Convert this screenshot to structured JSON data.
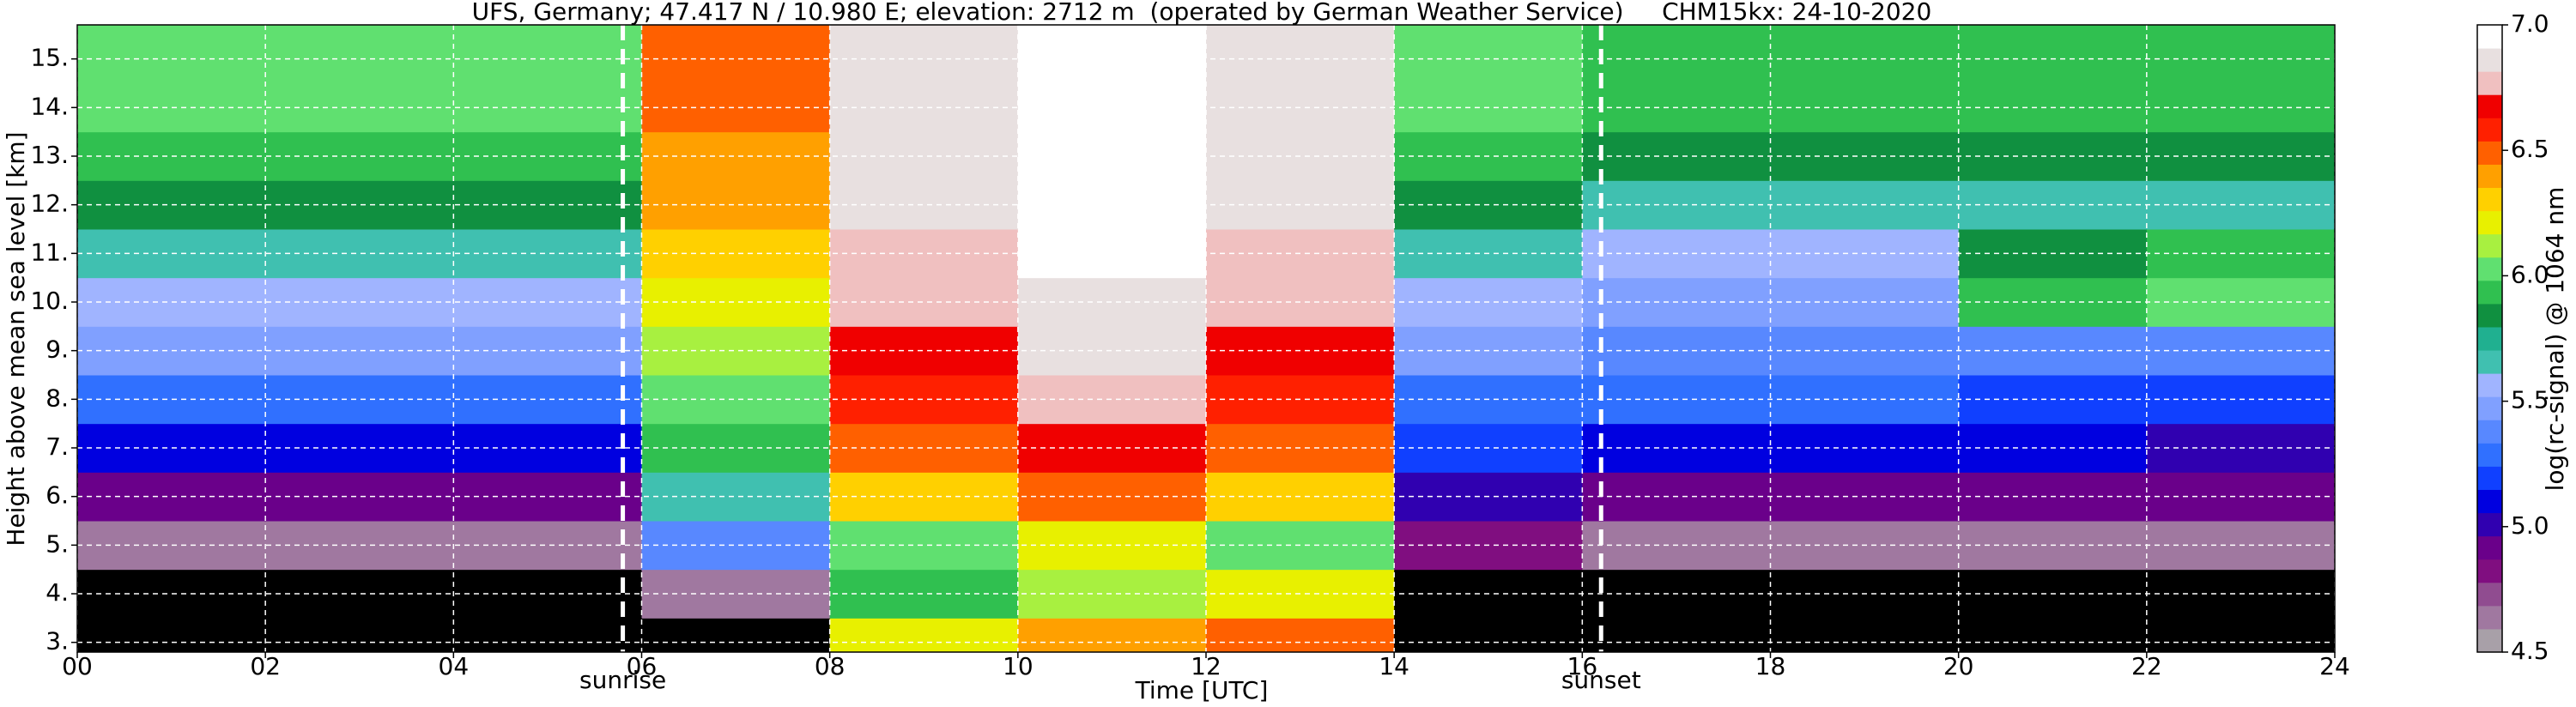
{
  "chart_data": {
    "type": "heatmap",
    "title": "UFS, Germany; 47.417 N / 10.980 E; elevation: 2712 m  (operated by German Weather Service)     CHM15kx: 24-10-2020",
    "xlabel": "Time [UTC]",
    "ylabel": "Height above mean sea level [km]",
    "xlim": [
      0,
      24
    ],
    "ylim": [
      2.8,
      15.7
    ],
    "xticks": [
      {
        "value": 0,
        "label": "00"
      },
      {
        "value": 2,
        "label": "02"
      },
      {
        "value": 4,
        "label": "04"
      },
      {
        "value": 6,
        "label": "06"
      },
      {
        "value": 8,
        "label": "08"
      },
      {
        "value": 10,
        "label": "10"
      },
      {
        "value": 12,
        "label": "12"
      },
      {
        "value": 14,
        "label": "14"
      },
      16,
      18,
      20,
      22,
      24
    ],
    "yticks": [
      {
        "value": 3,
        "label": "3."
      },
      {
        "value": 4,
        "label": "4."
      },
      {
        "value": 5,
        "label": "5."
      },
      {
        "value": 6,
        "label": "6."
      },
      {
        "value": 7,
        "label": "7."
      },
      {
        "value": 8,
        "label": "8."
      },
      {
        "value": 9,
        "label": "9."
      },
      {
        "value": 10,
        "label": "10."
      },
      {
        "value": 11,
        "label": "11."
      },
      {
        "value": 12,
        "label": "12."
      },
      {
        "value": 13,
        "label": "13."
      },
      {
        "value": 14,
        "label": "14."
      },
      {
        "value": 15,
        "label": "15."
      }
    ],
    "grid": true,
    "x_edges": [
      0,
      2,
      4,
      6,
      8,
      10,
      12,
      14,
      16,
      18,
      20,
      22,
      24
    ],
    "y_edges": [
      2.8,
      3.5,
      4.5,
      5.5,
      6.5,
      7.5,
      8.5,
      9.5,
      10.5,
      11.5,
      12.5,
      13.5,
      14.5,
      15.7
    ],
    "z": [
      [
        4.0,
        4.0,
        4.0,
        4.3,
        6.2,
        6.4,
        6.5,
        4.0,
        4.0,
        4.0,
        4.0,
        4.0
      ],
      [
        4.1,
        4.1,
        4.1,
        4.6,
        5.9,
        6.1,
        6.2,
        4.2,
        4.1,
        4.1,
        4.1,
        4.1
      ],
      [
        4.6,
        4.6,
        4.6,
        5.4,
        6.0,
        6.2,
        6.0,
        4.8,
        4.6,
        4.6,
        4.6,
        4.6
      ],
      [
        4.9,
        4.9,
        4.9,
        5.7,
        6.3,
        6.5,
        6.3,
        5.0,
        4.9,
        4.9,
        4.9,
        4.9
      ],
      [
        5.1,
        5.1,
        5.1,
        5.9,
        6.5,
        6.7,
        6.5,
        5.2,
        5.1,
        5.1,
        5.1,
        5.0
      ],
      [
        5.3,
        5.3,
        5.3,
        6.0,
        6.6,
        6.8,
        6.6,
        5.3,
        5.3,
        5.3,
        5.2,
        5.2
      ],
      [
        5.5,
        5.5,
        5.5,
        6.1,
        6.7,
        6.9,
        6.7,
        5.5,
        5.4,
        5.4,
        5.4,
        5.4
      ],
      [
        5.6,
        5.6,
        5.6,
        6.2,
        6.8,
        6.9,
        6.8,
        5.6,
        5.5,
        5.5,
        5.9,
        6.0
      ],
      [
        5.7,
        5.7,
        5.7,
        6.3,
        6.8,
        7.0,
        6.8,
        5.7,
        5.6,
        5.6,
        5.8,
        5.9
      ],
      [
        5.8,
        5.8,
        5.8,
        6.4,
        6.9,
        7.0,
        6.9,
        5.8,
        5.7,
        5.7,
        5.7,
        5.7
      ],
      [
        5.9,
        5.9,
        5.9,
        6.4,
        6.9,
        7.0,
        6.9,
        5.9,
        5.8,
        5.8,
        5.8,
        5.8
      ],
      [
        6.0,
        6.0,
        6.0,
        6.5,
        6.9,
        7.0,
        6.9,
        6.0,
        5.9,
        5.9,
        5.9,
        5.9
      ],
      [
        6.0,
        6.0,
        6.0,
        6.5,
        6.9,
        7.0,
        6.9,
        6.0,
        5.9,
        5.9,
        5.9,
        5.9
      ]
    ],
    "zlim": [
      4.5,
      7.0
    ],
    "zticks": [
      {
        "value": 4.5,
        "label": "4.5"
      },
      {
        "value": 5,
        "label": "5.0"
      },
      {
        "value": 5.5,
        "label": "5.5"
      },
      {
        "value": 6,
        "label": "6.0"
      },
      {
        "value": 6.5,
        "label": "6.5"
      },
      {
        "value": 7,
        "label": "7.0"
      }
    ],
    "zlabel": "log(rc-signal) @ 1064 nm",
    "under_color": "#000000",
    "colors": [
      "#a8a0a8",
      "#a078a0",
      "#904c90",
      "#800e80",
      "#6a008a",
      "#3000b0",
      "#0000e0",
      "#1040ff",
      "#3070ff",
      "#5888ff",
      "#80a0ff",
      "#a0b4ff",
      "#40c0b0",
      "#20b090",
      "#109040",
      "#30c050",
      "#60e070",
      "#a8f040",
      "#e8f000",
      "#ffd000",
      "#ffa000",
      "#ff6000",
      "#ff2000",
      "#f00000",
      "#f0c0c0",
      "#e8e0e0",
      "#ffffff"
    ],
    "annotations": [
      {
        "text": "sunrise",
        "x": 5.8
      },
      {
        "text": "sunset",
        "x": 16.2
      }
    ]
  }
}
